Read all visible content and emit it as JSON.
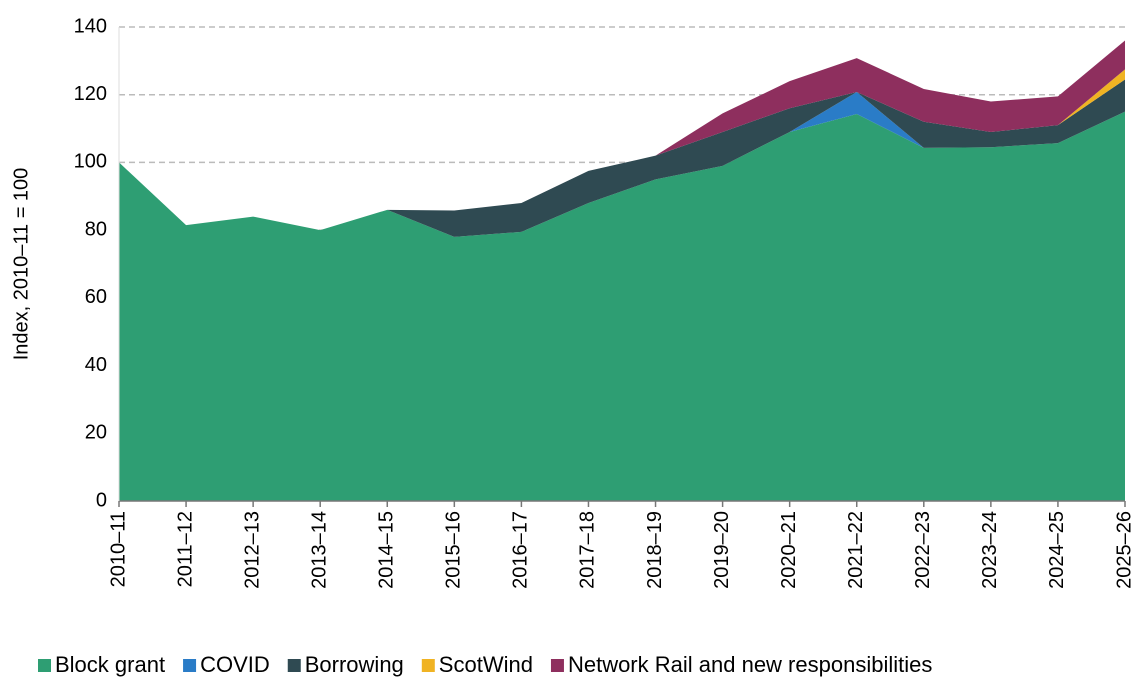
{
  "chart_data": {
    "type": "stacked_area",
    "y_label": "Index, 2010–11 = 100",
    "categories": [
      "2010–11",
      "2011–12",
      "2012–13",
      "2013–14",
      "2014–15",
      "2015–16",
      "2016–17",
      "2017–18",
      "2018–19",
      "2019–20",
      "2020–21",
      "2021–22",
      "2022–23",
      "2023–24",
      "2024–25",
      "2025–26"
    ],
    "series": [
      {
        "name": "Block grant",
        "color": "#2e9e73",
        "values": [
          100,
          81.5,
          84,
          80,
          86,
          78,
          79.5,
          88,
          95,
          99,
          109,
          114.3,
          104.3,
          104.5,
          105.7,
          115
        ]
      },
      {
        "name": "COVID",
        "color": "#2a7cc7",
        "values": [
          0,
          0,
          0,
          0,
          0,
          0,
          0,
          0,
          0,
          0,
          0,
          6.5,
          0,
          0,
          0,
          0
        ]
      },
      {
        "name": "Borrowing",
        "color": "#2f4a52",
        "values": [
          0,
          0,
          0,
          0,
          0,
          7.8,
          8.5,
          9.5,
          7,
          10,
          7,
          0,
          7.7,
          4.5,
          5.3,
          9.5
        ]
      },
      {
        "name": "ScotWind",
        "color": "#f0b323",
        "values": [
          0,
          0,
          0,
          0,
          0,
          0,
          0,
          0,
          0,
          0,
          0,
          0,
          0,
          0,
          0,
          3
        ]
      },
      {
        "name": "Network Rail and new responsibilities",
        "color": "#8e2f5e",
        "values": [
          0,
          0,
          0,
          0,
          0,
          0,
          0,
          0,
          0,
          5.5,
          8,
          10,
          9.7,
          9,
          8.5,
          8.5
        ]
      }
    ],
    "ylim": [
      0,
      140
    ],
    "yticks": [
      0,
      20,
      40,
      60,
      80,
      100,
      120,
      140
    ],
    "grid": true,
    "legend": "bottom"
  }
}
